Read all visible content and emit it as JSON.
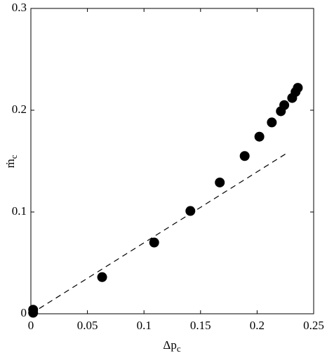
{
  "chart_data": {
    "type": "scatter",
    "xlabel": {
      "text": "Δp",
      "sub": "c"
    },
    "ylabel": {
      "text": "ṁ",
      "sub": "c"
    },
    "xlim": [
      0,
      0.25
    ],
    "xticks": [
      0,
      0.05,
      0.1,
      0.15,
      0.2,
      0.25
    ],
    "ylim": [
      0,
      0.3
    ],
    "yticks": [
      0,
      0.1,
      0.2,
      0.3
    ],
    "series": [
      {
        "color": "#000000",
        "marker": "circle",
        "x": [
          0.002,
          0.002,
          0.063,
          0.109,
          0.141,
          0.167,
          0.189,
          0.202,
          0.213,
          0.221,
          0.224,
          0.231,
          0.234,
          0.236
        ],
        "values": [
          0.004,
          0.001,
          0.036,
          0.07,
          0.101,
          0.129,
          0.155,
          0.174,
          0.188,
          0.199,
          0.205,
          0.212,
          0.218,
          0.222
        ]
      },
      {
        "color": "#000000",
        "style": "dashed",
        "x": [
          0,
          0.228
        ],
        "values": [
          0,
          0.159
        ]
      }
    ]
  }
}
